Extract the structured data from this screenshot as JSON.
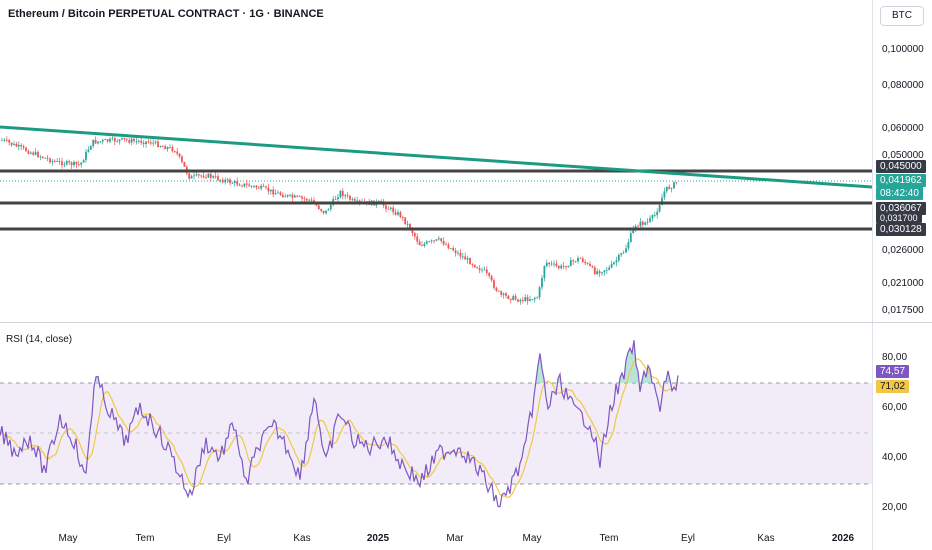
{
  "header": {
    "title": "Ethereum / Bitcoin PERPETUAL CONTRACT · 1G · BINANCE",
    "currency": "BTC"
  },
  "price_axis": {
    "ticks": [
      "0,100000",
      "0,080000",
      "0,060000",
      "0,050000",
      "0,026000",
      "0,021000",
      "0,017500"
    ],
    "tags": {
      "resistance": "0,045000",
      "last_price": "0,041962",
      "countdown": "08:42:40",
      "support_1": "0,036067",
      "hidden": "0,031700",
      "support_2": "0,030128"
    }
  },
  "rsi": {
    "label": "RSI (14, close)",
    "ticks": [
      "80,00",
      "60,00",
      "40,00",
      "20,00"
    ],
    "value_tag": "74,57",
    "ma_tag": "71,02"
  },
  "time_axis": {
    "labels": [
      "May",
      "Tem",
      "Eyl",
      "Kas",
      "2025",
      "Mar",
      "May",
      "Tem",
      "Eyl",
      "Kas",
      "2026"
    ]
  },
  "colors": {
    "up": "#26a69a",
    "down": "#ef5350",
    "trendline": "#1a9b82",
    "level": "#444444",
    "rsi_line": "#7e57c2",
    "rsi_ma": "#f2c744",
    "rsi_band": "#ede7f6"
  }
}
